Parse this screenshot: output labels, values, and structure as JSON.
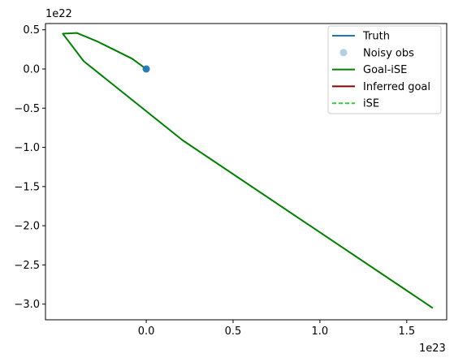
{
  "chart_data": {
    "type": "line",
    "title": "",
    "xlabel": "",
    "ylabel": "",
    "x_offset_label": "1e23",
    "y_offset_label": "1e22",
    "x_scale": 1e+23,
    "y_scale": 1e+22,
    "xlim": [
      -0.58,
      1.73
    ],
    "ylim": [
      -3.2,
      0.58
    ],
    "x_ticks": [
      {
        "value": 0.0,
        "label": "0.0"
      },
      {
        "value": 0.5,
        "label": "0.5"
      },
      {
        "value": 1.0,
        "label": "1.0"
      },
      {
        "value": 1.5,
        "label": "1.5"
      }
    ],
    "y_ticks": [
      {
        "value": 0.5,
        "label": "0.5"
      },
      {
        "value": 0.0,
        "label": "0.0"
      },
      {
        "value": -0.5,
        "label": "−0.5"
      },
      {
        "value": -1.0,
        "label": "−1.0"
      },
      {
        "value": -1.5,
        "label": "−1.5"
      },
      {
        "value": -2.0,
        "label": "−2.0"
      },
      {
        "value": -2.5,
        "label": "−2.5"
      },
      {
        "value": -3.0,
        "label": "−3.0"
      }
    ],
    "grid": false,
    "legend_position": "top-right",
    "series": [
      {
        "name": "Truth",
        "style": "line",
        "color": "#1f77b4",
        "dashed": false,
        "points": [
          [
            0.0,
            0.0
          ],
          [
            0.0,
            0.0
          ]
        ]
      },
      {
        "name": "Noisy obs",
        "style": "marker",
        "color": "#1f77b4",
        "alpha": 0.35,
        "points": [
          [
            0.0,
            0.0
          ]
        ]
      },
      {
        "name": "Goal-iSE",
        "style": "line",
        "color": "#008000",
        "dashed": false,
        "points": [
          [
            0.0,
            0.0
          ],
          [
            -0.08,
            0.13
          ],
          [
            -0.18,
            0.24
          ],
          [
            -0.28,
            0.35
          ],
          [
            -0.4,
            0.46
          ],
          [
            -0.48,
            0.45
          ],
          [
            -0.36,
            0.1
          ],
          [
            0.21,
            -0.91
          ],
          [
            1.65,
            -3.05
          ]
        ]
      },
      {
        "name": "Inferred goal",
        "style": "line",
        "color": "#8b0000",
        "dashed": false,
        "points": []
      },
      {
        "name": "iSE",
        "style": "line",
        "color": "#32cd32",
        "dashed": true,
        "points": []
      }
    ]
  }
}
